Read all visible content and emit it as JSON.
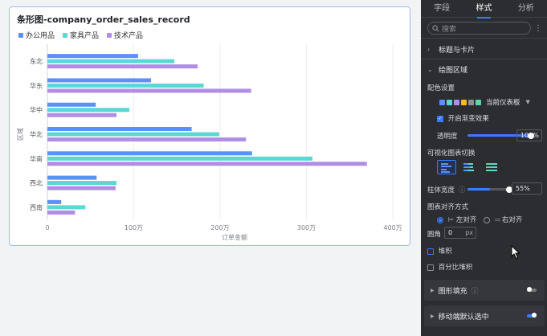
{
  "chart": {
    "title": "条形图-company_order_sales_record",
    "legend": [
      {
        "label": "办公用品",
        "color": "#5b8ff9"
      },
      {
        "label": "家具产品",
        "color": "#5ad8d4"
      },
      {
        "label": "技术产品",
        "color": "#b08ee6"
      }
    ],
    "ylabel": "区域",
    "xlabel": "订单金额",
    "xticks": [
      "0",
      "100万",
      "200万",
      "300万",
      "400万"
    ]
  },
  "chart_data": {
    "type": "bar",
    "orientation": "horizontal",
    "categories": [
      "东北",
      "华东",
      "华中",
      "华北",
      "华南",
      "西北",
      "西南"
    ],
    "series": [
      {
        "name": "办公用品",
        "values": [
          1050000,
          1200000,
          560000,
          1670000,
          2370000,
          570000,
          160000
        ]
      },
      {
        "name": "家具产品",
        "values": [
          1470000,
          1810000,
          950000,
          1990000,
          3070000,
          800000,
          440000
        ]
      },
      {
        "name": "技术产品",
        "values": [
          1740000,
          2360000,
          800000,
          2300000,
          3700000,
          790000,
          320000
        ]
      }
    ],
    "xlabel": "订单金额",
    "ylabel": "区域",
    "xlim": [
      0,
      4000000
    ],
    "grid": true,
    "legend": "top-left"
  },
  "panel": {
    "tabs": [
      "字段",
      "样式",
      "分析"
    ],
    "active_tab": "样式",
    "search_placeholder": "搜索",
    "section_title_card": "标题与卡片",
    "section_plot_area": "绘图区域",
    "color_setting_label": "配色设置",
    "palette_name": "当前仪表板",
    "palette_colors": [
      "#5b8ff9",
      "#5ad8d4",
      "#b08ee6",
      "#f6bd16",
      "#8c8f96",
      "#5ad8a6"
    ],
    "gradient_label": "开启渐变效果",
    "opacity_label": "透明度",
    "opacity_value": "100%",
    "opacity_fraction": 1.0,
    "chart_switch_label": "可视化图表切换",
    "bar_width_label": "柱体宽度",
    "bar_width_value": "55%",
    "bar_width_fraction": 0.55,
    "align_label": "图表对齐方式",
    "align_left": "左对齐",
    "align_right": "右对齐",
    "radius_label": "圆角",
    "radius_value": "0",
    "radius_unit": "px",
    "stack_label": "堆积",
    "percent_stack_label": "百分比堆积",
    "pattern_fill_label": "图形填充",
    "mobile_default_label": "移动端默认选中"
  }
}
